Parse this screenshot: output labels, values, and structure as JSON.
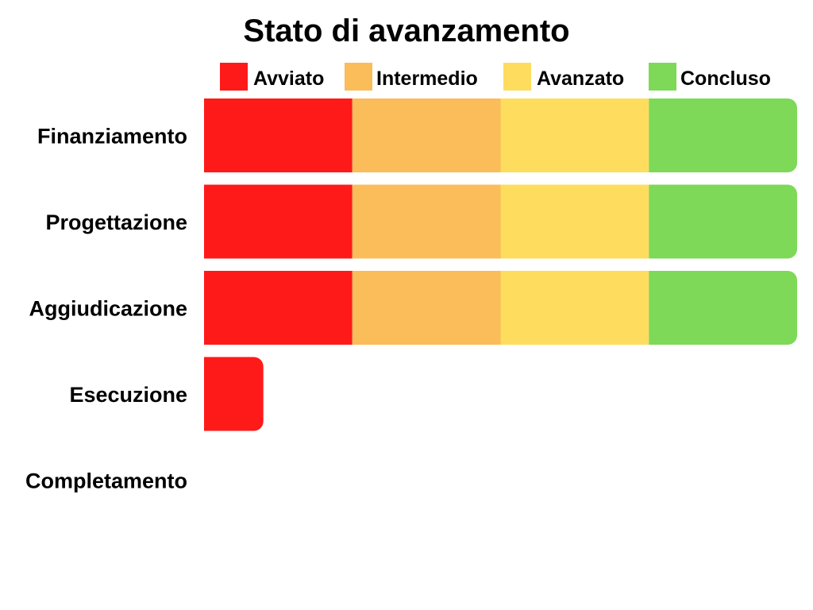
{
  "chart_data": {
    "type": "bar",
    "orientation": "horizontal",
    "stacked": true,
    "title": "Stato di avanzamento",
    "categories": [
      "Finanziamento",
      "Progettazione",
      "Aggiudicazione",
      "Esecuzione",
      "Completamento"
    ],
    "series": [
      {
        "name": "Avviato",
        "color": "#ff1a1a",
        "values": [
          1,
          1,
          1,
          0.4,
          0
        ]
      },
      {
        "name": "Intermedio",
        "color": "#fbbc5a",
        "values": [
          1,
          1,
          1,
          0,
          0
        ]
      },
      {
        "name": "Avanzato",
        "color": "#fedd5e",
        "values": [
          1,
          1,
          1,
          0,
          0
        ]
      },
      {
        "name": "Concluso",
        "color": "#7dd957",
        "values": [
          1,
          1,
          1,
          0,
          0
        ]
      }
    ],
    "xlim": [
      0,
      4
    ],
    "grid": false,
    "legend_position": "top",
    "axes_visible": false
  }
}
